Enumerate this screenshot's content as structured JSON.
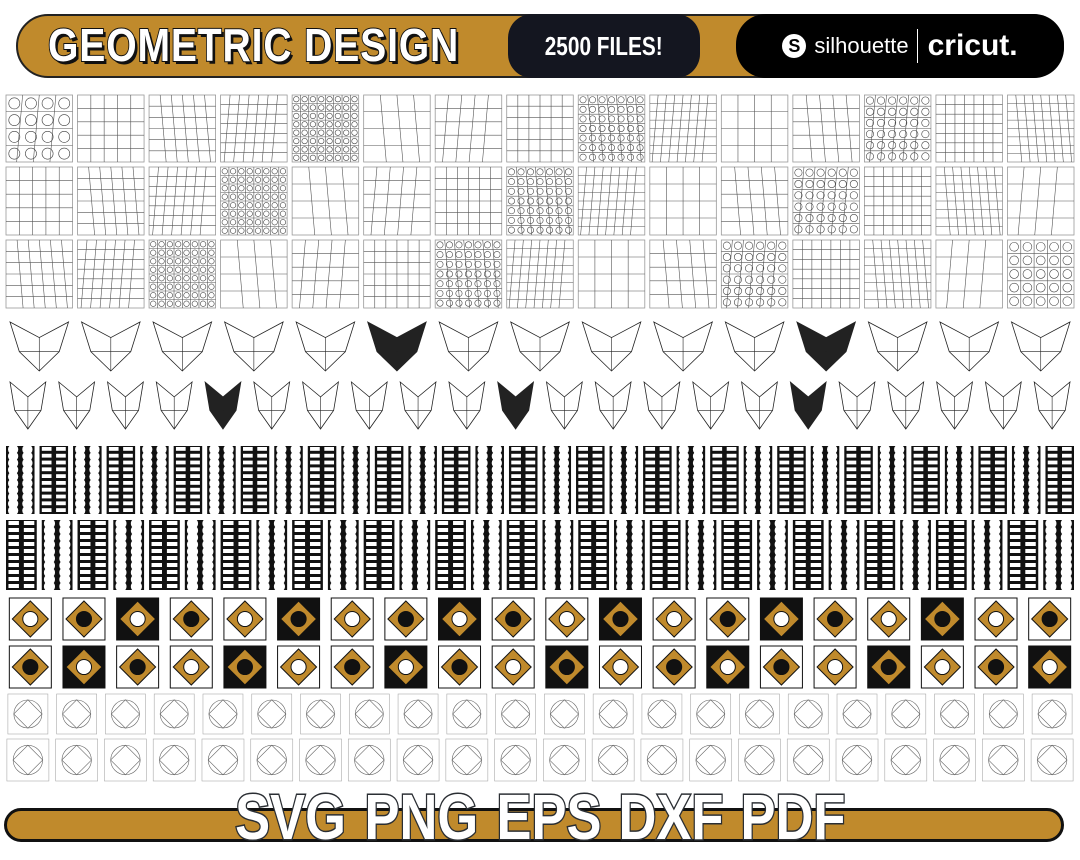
{
  "header": {
    "title": "GEOMETRIC DESIGN",
    "badge": "2500 FILES!",
    "brand_1": "silhouette",
    "brand_2": "cricut."
  },
  "footer": {
    "formats": [
      "SVG",
      "PNG",
      "EPS",
      "DXF",
      "PDF"
    ]
  },
  "colors": {
    "gold": "#c08a2c",
    "dark": "#141620",
    "black": "#000000"
  }
}
